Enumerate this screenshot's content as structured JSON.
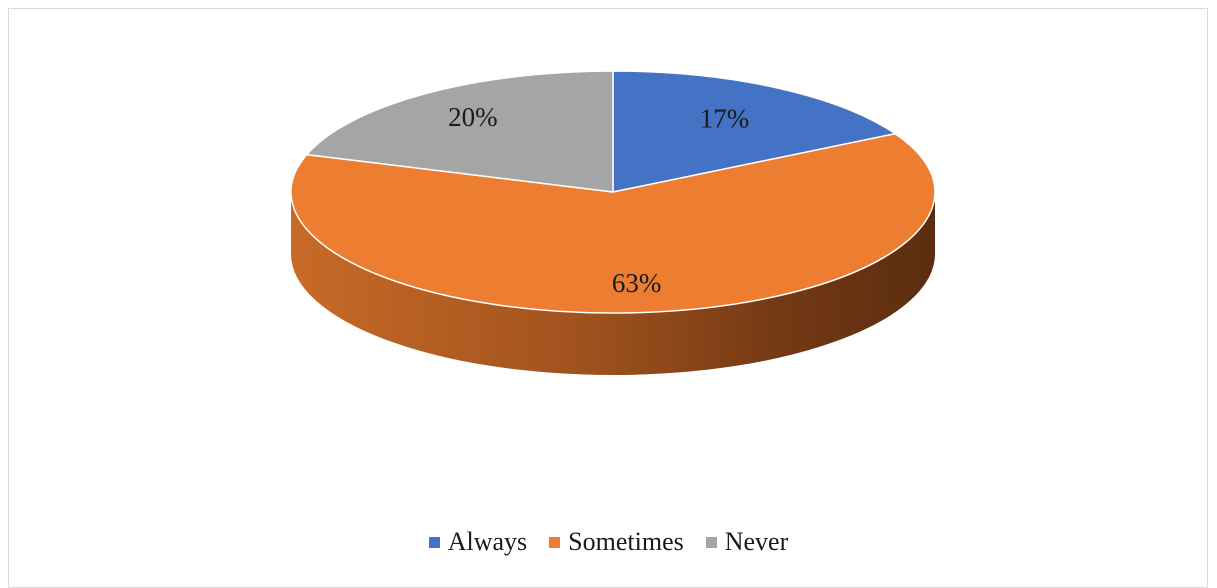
{
  "chart_data": {
    "type": "pie",
    "title": "",
    "categories": [
      "Always",
      "Sometimes",
      "Never"
    ],
    "values": [
      17,
      63,
      20
    ],
    "value_labels": [
      "17%",
      "63%",
      "20%"
    ],
    "colors": [
      "#4472C4",
      "#ED7D31",
      "#A5A5A5"
    ],
    "style": "3d",
    "legend_position": "bottom"
  },
  "legend": {
    "items": [
      {
        "label": "Always",
        "color": "#4472C4"
      },
      {
        "label": "Sometimes",
        "color": "#ED7D31"
      },
      {
        "label": "Never",
        "color": "#A5A5A5"
      }
    ]
  }
}
